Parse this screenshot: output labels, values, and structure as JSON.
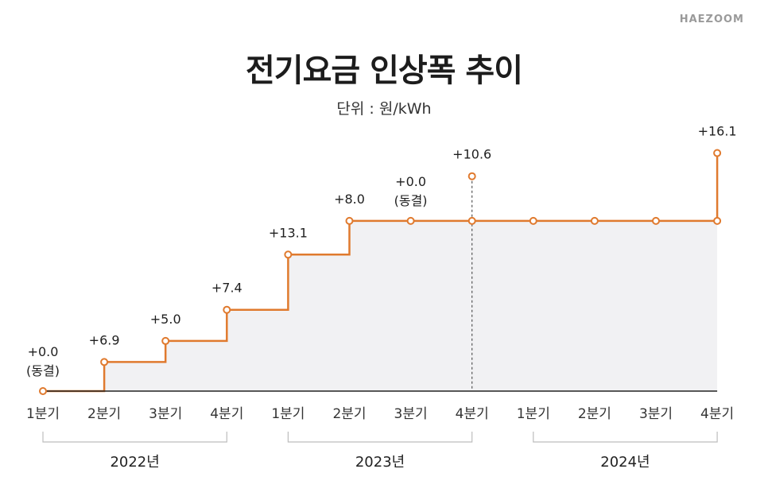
{
  "brand": "HAEZOOM",
  "chart_data": {
    "type": "line",
    "title": "전기요금 인상폭 추이",
    "subtitle": "단위 : 원/kWh",
    "categories": [
      "1분기",
      "2분기",
      "3분기",
      "4분기",
      "1분기",
      "2분기",
      "3분기",
      "4분기",
      "1분기",
      "2분기",
      "3분기",
      "4분기"
    ],
    "year_groups": [
      {
        "label": "2022년",
        "start": 0,
        "end": 3
      },
      {
        "label": "2023년",
        "start": 4,
        "end": 7
      },
      {
        "label": "2024년",
        "start": 8,
        "end": 11
      }
    ],
    "increase_labels": [
      "+0.0",
      "+6.9",
      "+5.0",
      "+7.4",
      "+13.1",
      "+8.0",
      "+0.0",
      "+10.6",
      "",
      "",
      "",
      "+16.1"
    ],
    "freeze_label": "(동결)",
    "freeze_indices": [
      0,
      6
    ],
    "cumulative_values": [
      0,
      6.9,
      11.9,
      19.3,
      32.4,
      40.4,
      40.4,
      40.4,
      40.4,
      40.4,
      40.4,
      40.4
    ],
    "spike_points": [
      {
        "index": 7,
        "value": 51.0
      },
      {
        "index": 11,
        "value": 56.5
      }
    ],
    "dashed_marker_index": 7,
    "colors": {
      "line": "#e07a2e",
      "fill": "#f1f1f3",
      "axis": "#222222",
      "dashed": "#555555",
      "bracket": "#bdbdbd"
    }
  }
}
